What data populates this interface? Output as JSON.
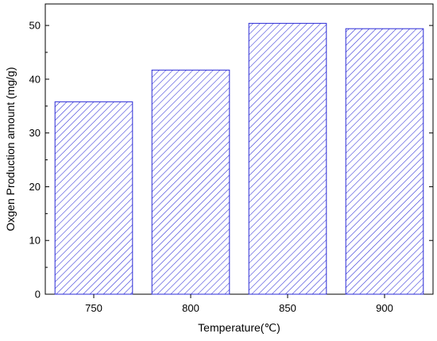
{
  "chart_data": {
    "type": "bar",
    "title": "",
    "xlabel": "Temperature(℃)",
    "ylabel": "Oxgen Production amount (mg/g)",
    "categories": [
      "750",
      "800",
      "850",
      "900"
    ],
    "values": [
      35.8,
      41.7,
      50.4,
      49.4
    ],
    "ylim": [
      0,
      54
    ],
    "yticks": [
      0,
      10,
      20,
      30,
      40,
      50
    ],
    "grid": false,
    "bar_style": "diagonal-hatch",
    "colors": {
      "bar_edge": "#2b2bd6",
      "hatch": "#2b2bd6",
      "axis": "#000000"
    }
  }
}
